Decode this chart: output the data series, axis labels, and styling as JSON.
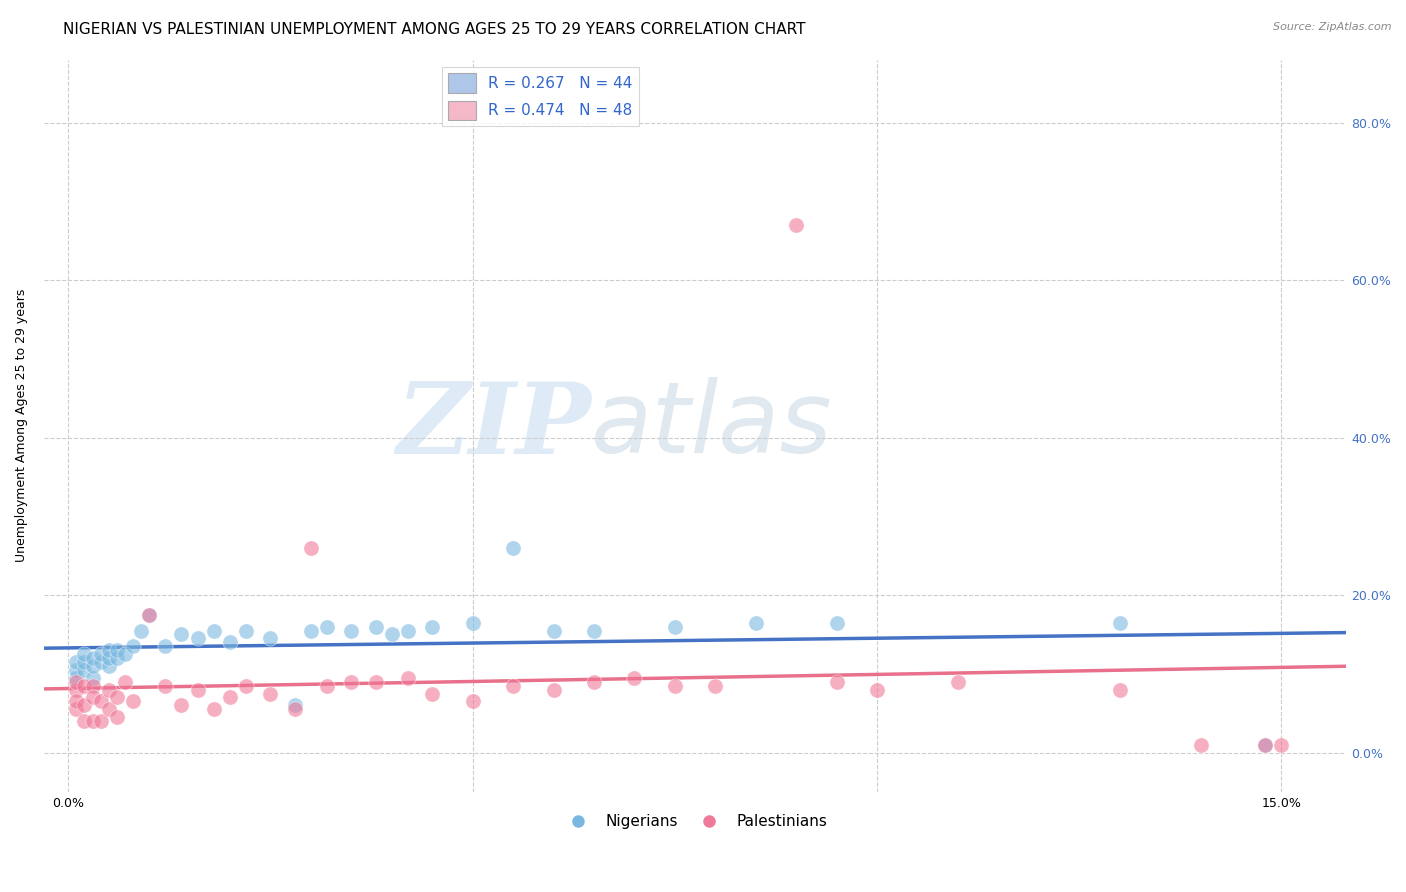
{
  "title": "NIGERIAN VS PALESTINIAN UNEMPLOYMENT AMONG AGES 25 TO 29 YEARS CORRELATION CHART",
  "source": "Source: ZipAtlas.com",
  "ylabel": "Unemployment Among Ages 25 to 29 years",
  "ytick_labels": [
    "0.0%",
    "20.0%",
    "40.0%",
    "60.0%",
    "80.0%"
  ],
  "ytick_values": [
    0.0,
    0.2,
    0.4,
    0.6,
    0.8
  ],
  "xtick_values": [
    0.0,
    0.05,
    0.1,
    0.15
  ],
  "xtick_labels": [
    "0.0%",
    "",
    "",
    "15.0%"
  ],
  "xlim": [
    -0.003,
    0.158
  ],
  "ylim": [
    -0.05,
    0.88
  ],
  "legend_entries": [
    {
      "label": "R = 0.267   N = 44",
      "color": "#aec6e8"
    },
    {
      "label": "R = 0.474   N = 48",
      "color": "#f4b8c8"
    }
  ],
  "legend_bottom": [
    "Nigerians",
    "Palestinians"
  ],
  "nigerians_color": "#7ab8e0",
  "palestinians_color": "#f07898",
  "trendline_nigerian_color": "#4472c4",
  "trendline_palestinian_color": "#e8708a",
  "watermark_zip": "ZIP",
  "watermark_atlas": "atlas",
  "background_color": "#ffffff",
  "grid_color": "#cccccc",
  "title_fontsize": 11,
  "axis_label_fontsize": 9,
  "tick_fontsize": 9,
  "legend_fontsize": 11,
  "nigerian_x": [
    0.001,
    0.001,
    0.001,
    0.002,
    0.002,
    0.002,
    0.003,
    0.003,
    0.003,
    0.004,
    0.004,
    0.005,
    0.005,
    0.005,
    0.006,
    0.006,
    0.007,
    0.008,
    0.009,
    0.01,
    0.012,
    0.014,
    0.016,
    0.018,
    0.02,
    0.022,
    0.025,
    0.028,
    0.03,
    0.032,
    0.035,
    0.038,
    0.04,
    0.042,
    0.045,
    0.05,
    0.055,
    0.06,
    0.065,
    0.075,
    0.085,
    0.095,
    0.13,
    0.148
  ],
  "nigerian_y": [
    0.095,
    0.105,
    0.115,
    0.105,
    0.115,
    0.125,
    0.095,
    0.11,
    0.12,
    0.115,
    0.125,
    0.11,
    0.12,
    0.13,
    0.12,
    0.13,
    0.125,
    0.135,
    0.155,
    0.175,
    0.135,
    0.15,
    0.145,
    0.155,
    0.14,
    0.155,
    0.145,
    0.06,
    0.155,
    0.16,
    0.155,
    0.16,
    0.15,
    0.155,
    0.16,
    0.165,
    0.26,
    0.155,
    0.155,
    0.16,
    0.165,
    0.165,
    0.165,
    0.01
  ],
  "palestinian_x": [
    0.001,
    0.001,
    0.001,
    0.001,
    0.002,
    0.002,
    0.002,
    0.003,
    0.003,
    0.003,
    0.004,
    0.004,
    0.005,
    0.005,
    0.006,
    0.006,
    0.007,
    0.008,
    0.01,
    0.012,
    0.014,
    0.016,
    0.018,
    0.02,
    0.022,
    0.025,
    0.028,
    0.03,
    0.032,
    0.035,
    0.038,
    0.042,
    0.045,
    0.05,
    0.055,
    0.06,
    0.065,
    0.07,
    0.075,
    0.08,
    0.09,
    0.095,
    0.1,
    0.11,
    0.13,
    0.14,
    0.148,
    0.15
  ],
  "palestinian_y": [
    0.08,
    0.09,
    0.055,
    0.065,
    0.085,
    0.06,
    0.04,
    0.085,
    0.07,
    0.04,
    0.065,
    0.04,
    0.08,
    0.055,
    0.07,
    0.045,
    0.09,
    0.065,
    0.175,
    0.085,
    0.06,
    0.08,
    0.055,
    0.07,
    0.085,
    0.075,
    0.055,
    0.26,
    0.085,
    0.09,
    0.09,
    0.095,
    0.075,
    0.065,
    0.085,
    0.08,
    0.09,
    0.095,
    0.085,
    0.085,
    0.67,
    0.09,
    0.08,
    0.09,
    0.08,
    0.01,
    0.01,
    0.01
  ]
}
